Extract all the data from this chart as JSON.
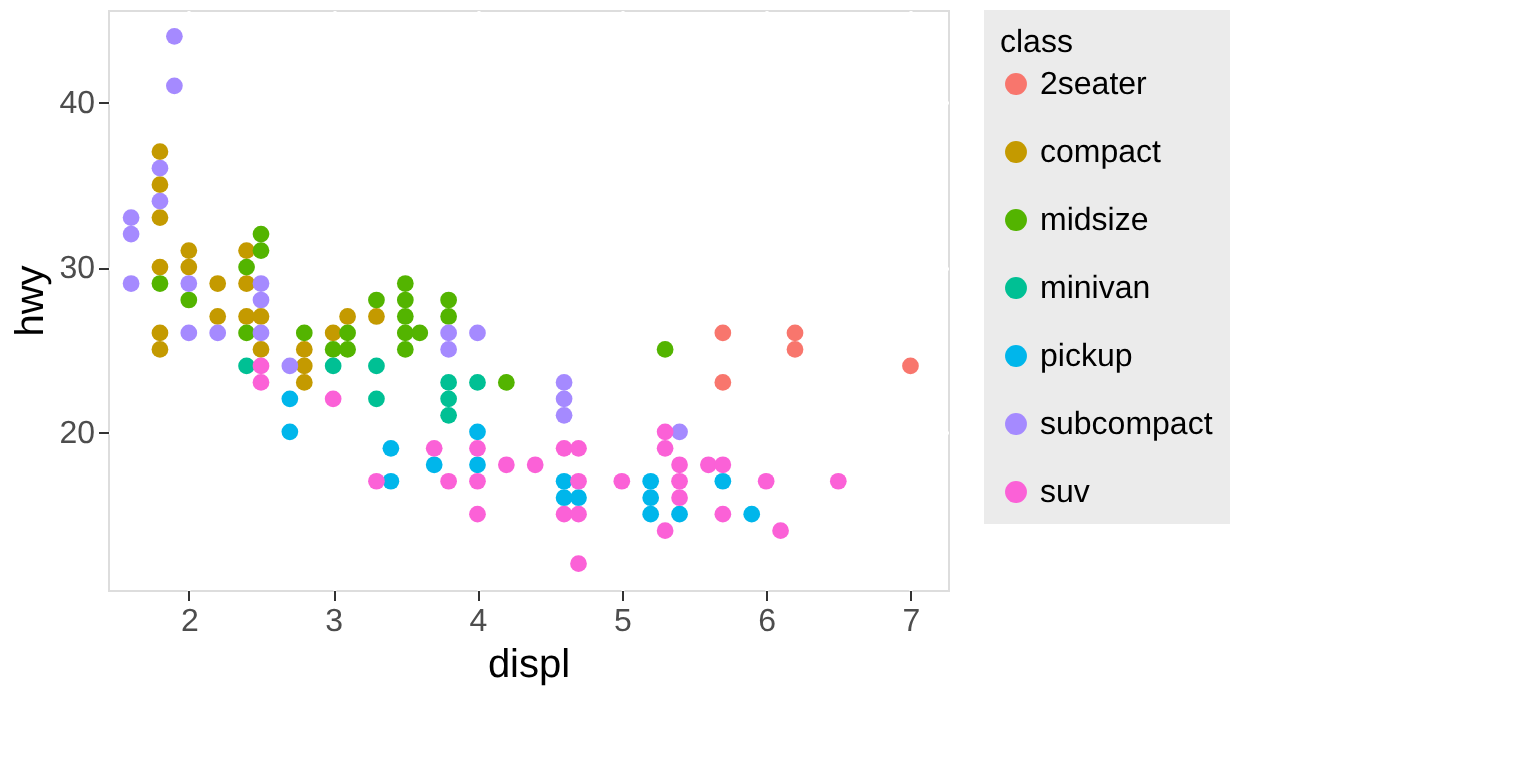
{
  "chart_data": {
    "type": "scatter",
    "xlabel": "displ",
    "ylabel": "hwy",
    "legend_title": "class",
    "xlim": [
      1.44,
      7.26
    ],
    "ylim": [
      10.4,
      45.6
    ],
    "xticks": [
      2,
      3,
      4,
      5,
      6,
      7
    ],
    "yticks": [
      20,
      30,
      40
    ],
    "grid": true,
    "legend": "right",
    "marker": "circle",
    "series": [
      {
        "name": "2seater",
        "color": "#f8766d",
        "x": [
          5.7,
          5.7,
          6.2,
          6.2,
          7.0
        ],
        "values": [
          26,
          23,
          26,
          25,
          24
        ]
      },
      {
        "name": "compact",
        "color": "#c49a00",
        "x": [
          1.8,
          1.8,
          1.8,
          1.8,
          1.8,
          1.8,
          2.0,
          2.0,
          2.2,
          2.2,
          2.4,
          2.4,
          2.4,
          2.5,
          2.5,
          2.8,
          2.8,
          2.8,
          3.0,
          3.1,
          3.3
        ],
        "values": [
          37,
          35,
          33,
          30,
          26,
          25,
          31,
          30,
          29,
          27,
          31,
          29,
          27,
          27,
          25,
          25,
          24,
          23,
          26,
          27,
          27
        ]
      },
      {
        "name": "midsize",
        "color": "#53b400",
        "x": [
          1.8,
          2.0,
          2.4,
          2.4,
          2.5,
          2.5,
          2.8,
          3.0,
          3.1,
          3.1,
          3.3,
          3.5,
          3.5,
          3.5,
          3.5,
          3.5,
          3.6,
          3.8,
          3.8,
          4.2,
          5.3
        ],
        "values": [
          29,
          28,
          30,
          26,
          32,
          31,
          26,
          25,
          26,
          25,
          28,
          29,
          28,
          27,
          26,
          25,
          26,
          28,
          27,
          23,
          25
        ]
      },
      {
        "name": "minivan",
        "color": "#00c094",
        "x": [
          2.4,
          3.0,
          3.3,
          3.3,
          3.8,
          3.8,
          3.8,
          4.0
        ],
        "values": [
          24,
          24,
          24,
          22,
          23,
          22,
          21,
          23
        ]
      },
      {
        "name": "pickup",
        "color": "#00b6eb",
        "x": [
          2.7,
          2.7,
          3.4,
          3.4,
          3.7,
          4.0,
          4.0,
          4.6,
          4.6,
          4.7,
          5.2,
          5.2,
          5.2,
          5.4,
          5.7,
          5.9
        ],
        "values": [
          22,
          20,
          19,
          17,
          18,
          20,
          18,
          17,
          16,
          16,
          17,
          16,
          15,
          15,
          17,
          15
        ]
      },
      {
        "name": "subcompact",
        "color": "#a58aff",
        "x": [
          1.6,
          1.6,
          1.6,
          1.8,
          1.8,
          1.9,
          1.9,
          2.0,
          2.0,
          2.2,
          2.5,
          2.5,
          2.5,
          2.7,
          3.8,
          3.8,
          4.0,
          4.6,
          4.6,
          4.6,
          5.4
        ],
        "values": [
          33,
          32,
          29,
          36,
          34,
          44,
          41,
          29,
          26,
          26,
          29,
          28,
          26,
          24,
          26,
          25,
          26,
          23,
          22,
          21,
          20
        ]
      },
      {
        "name": "suv",
        "color": "#fb61d7",
        "x": [
          2.5,
          2.5,
          3.0,
          3.3,
          3.7,
          3.8,
          4.0,
          4.0,
          4.0,
          4.2,
          4.4,
          4.6,
          4.7,
          4.6,
          4.7,
          4.7,
          4.7,
          5.0,
          5.3,
          5.3,
          5.3,
          5.4,
          5.4,
          5.4,
          5.6,
          5.7,
          5.7,
          6.0,
          6.1,
          6.5
        ],
        "values": [
          24,
          23,
          22,
          17,
          19,
          17,
          19,
          17,
          15,
          18,
          18,
          19,
          19,
          15,
          15,
          17,
          12,
          17,
          20,
          19,
          14,
          18,
          17,
          16,
          18,
          18,
          15,
          17,
          14,
          17
        ]
      }
    ]
  }
}
